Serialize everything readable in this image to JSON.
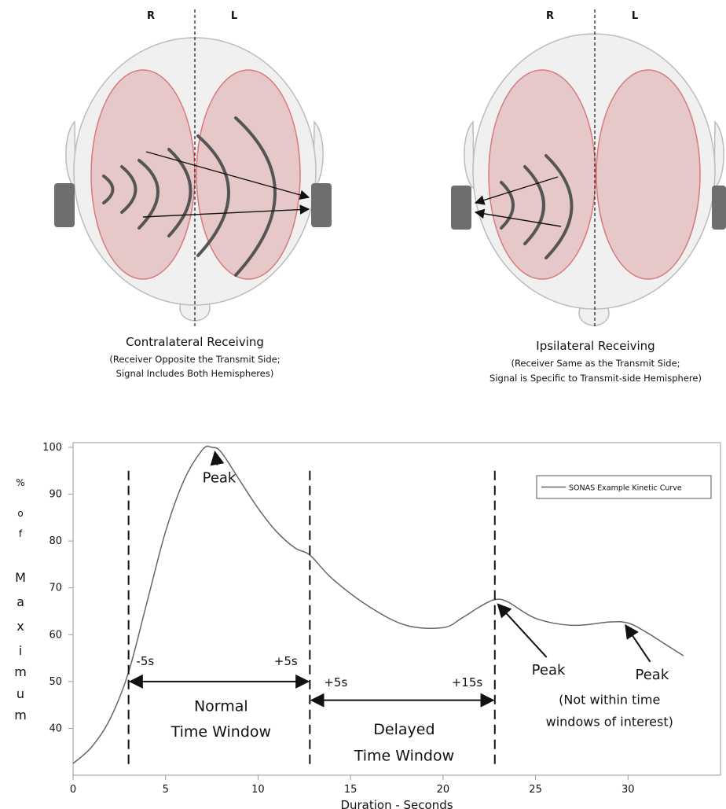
{
  "diagrams": [
    {
      "side_right": "R",
      "side_left": "L",
      "title": "Contralateral Receiving",
      "subtitle_line1": "(Receiver Opposite the Transmit Side;",
      "subtitle_line2": "Signal Includes Both Hemispheres)"
    },
    {
      "side_right": "R",
      "side_left": "L",
      "title": "Ipsilateral Receiving",
      "subtitle_line1": "(Receiver Same as the Transmit Side;",
      "subtitle_line2": "Signal is Specific to Transmit-side Hemisphere)"
    }
  ],
  "colors": {
    "head_fill": "#f0f0f0",
    "head_stroke": "#bcbcbc",
    "hemisphere_fill": "#e6c8c9",
    "hemisphere_stroke": "#d9797a",
    "wave": "#555555",
    "device": "#6e6e6e",
    "curve": "#666666",
    "axis": "#999999"
  },
  "chart_data": {
    "type": "line",
    "xlabel": "Duration - Seconds",
    "ylabel_letters": [
      "%",
      "o",
      "f",
      "M",
      "a",
      "x",
      "i",
      "m",
      "u",
      "m"
    ],
    "xlim": [
      0,
      35
    ],
    "ylim": [
      30,
      101
    ],
    "xticks": [
      0,
      5,
      10,
      15,
      20,
      25,
      30
    ],
    "yticks": [
      40,
      50,
      60,
      70,
      80,
      90,
      100
    ],
    "grid": false,
    "legend": {
      "label": "SONAS Example Kinetic Curve",
      "position": "top-right"
    },
    "series": [
      {
        "name": "SONAS Example Kinetic Curve",
        "x": [
          0,
          1,
          2,
          3,
          4,
          5,
          6,
          7,
          7.5,
          8,
          9,
          10,
          11,
          12,
          12.8,
          14,
          16,
          18,
          20,
          21,
          22,
          22.8,
          23.5,
          25,
          27,
          29,
          30,
          31,
          32,
          33
        ],
        "y": [
          32.5,
          36,
          42,
          52,
          67,
          82,
          93,
          99.5,
          100,
          99,
          93,
          87,
          82,
          78.5,
          77,
          72,
          66,
          62,
          61.5,
          63.5,
          66,
          67.5,
          67,
          63.5,
          62,
          62.7,
          62.5,
          60.5,
          58,
          55.5
        ]
      }
    ],
    "vlines": [
      3,
      12.8,
      22.8
    ],
    "annotations": [
      {
        "text": "Peak",
        "x": 7.5,
        "y": 100,
        "text_x": 7.9,
        "text_y": 92.5
      },
      {
        "text": "Peak",
        "x": 22.8,
        "y": 67.5,
        "text_x": 25.7,
        "text_y": 51.5
      },
      {
        "text": "Peak",
        "x": 29.7,
        "y": 63,
        "text_x": 31.3,
        "text_y": 50.5
      }
    ],
    "labels": [
      {
        "text": "-5s",
        "x": 3.9,
        "y": 53.5
      },
      {
        "text": "+5s",
        "x": 11.5,
        "y": 53.5
      },
      {
        "text": "+5s",
        "x": 14.2,
        "y": 49
      },
      {
        "text": "+15s",
        "x": 21.3,
        "y": 49
      },
      {
        "text": "Normal",
        "x": 8,
        "y": 43.7
      },
      {
        "text": "Time Window",
        "x": 8,
        "y": 38.2
      },
      {
        "text": "Delayed",
        "x": 17.9,
        "y": 38.7
      },
      {
        "text": "Time Window",
        "x": 17.9,
        "y": 33.1
      },
      {
        "text": "(Not within time",
        "x": 29,
        "y": 45.2
      },
      {
        "text": "windows of interest)",
        "x": 29,
        "y": 40.5
      }
    ],
    "ranges": [
      {
        "x0": 3,
        "x1": 12.8,
        "y": 50
      },
      {
        "x0": 12.8,
        "x1": 22.8,
        "y": 46
      }
    ]
  }
}
